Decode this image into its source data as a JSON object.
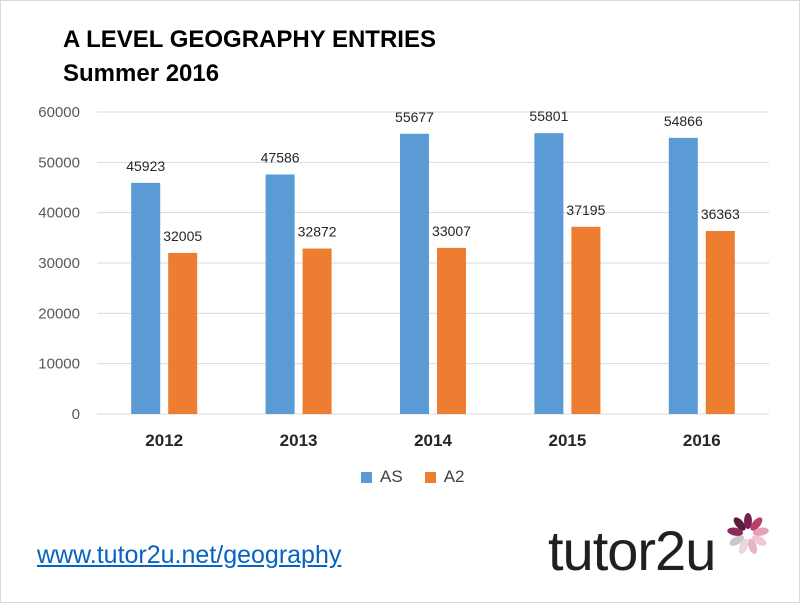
{
  "title": {
    "line1": "A LEVEL GEOGRAPHY ENTRIES",
    "line2": "Summer 2016"
  },
  "footer": {
    "link_text": "www.tutor2u.net/geography",
    "logo_text": "tutor2u"
  },
  "colors": {
    "as": "#5b9bd5",
    "a2": "#ed7d31",
    "grid": "#d9d9d9",
    "axis_text": "#595959"
  },
  "chart_data": {
    "type": "bar",
    "categories": [
      "2012",
      "2013",
      "2014",
      "2015",
      "2016"
    ],
    "series": [
      {
        "name": "AS",
        "values": [
          45923,
          47586,
          55677,
          55801,
          54866
        ]
      },
      {
        "name": "A2",
        "values": [
          32005,
          32872,
          33007,
          37195,
          36363
        ]
      }
    ],
    "ylim": [
      0,
      60000
    ],
    "yticks": [
      "0",
      "10000",
      "20000",
      "30000",
      "40000",
      "50000",
      "60000"
    ],
    "data_labels": true,
    "grid": true,
    "legend_placement": "bottom"
  }
}
